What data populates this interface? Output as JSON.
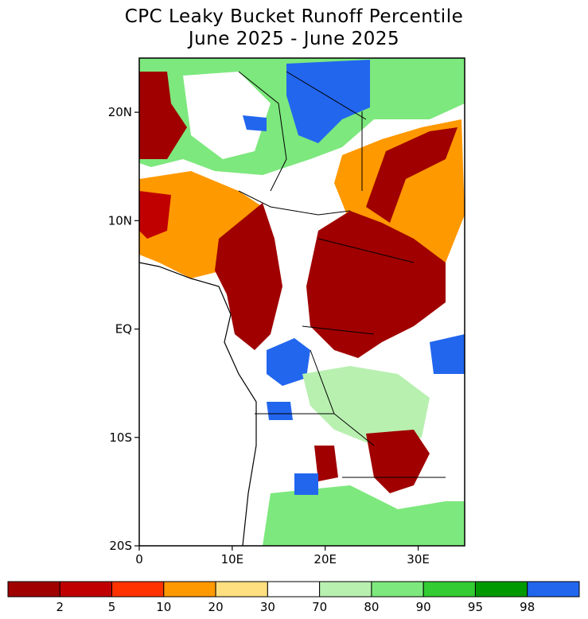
{
  "title": "CPC Leaky Bucket Runoff Percentile",
  "subtitle": "June 2025 - June 2025",
  "map": {
    "lon_range": [
      0,
      35
    ],
    "lat_range": [
      -20,
      25
    ],
    "y_ticks": [
      {
        "lat": 20,
        "label": "20N"
      },
      {
        "lat": 10,
        "label": "10N"
      },
      {
        "lat": 0,
        "label": "EQ"
      },
      {
        "lat": -10,
        "label": "10S"
      },
      {
        "lat": -20,
        "label": "20S"
      }
    ],
    "x_ticks": [
      {
        "lon": 0,
        "label": "0"
      },
      {
        "lon": 10,
        "label": "10E"
      },
      {
        "lon": 20,
        "label": "20E"
      },
      {
        "lon": 30,
        "label": "30E"
      }
    ]
  },
  "legend": {
    "colors": [
      "#a00000",
      "#c00000",
      "#ff3300",
      "#ff9900",
      "#ffe080",
      "#ffffff",
      "#b8f0b0",
      "#7de87d",
      "#33cc33",
      "#009900",
      "#2266ee"
    ],
    "labels": [
      "2",
      "5",
      "10",
      "20",
      "30",
      "70",
      "80",
      "90",
      "95",
      "98"
    ]
  },
  "colors": {
    "dry_extreme": "#a00000",
    "dry": "#ff9900",
    "normal": "#ffffff",
    "wet": "#7de87d",
    "wet_extreme": "#2266ee"
  }
}
